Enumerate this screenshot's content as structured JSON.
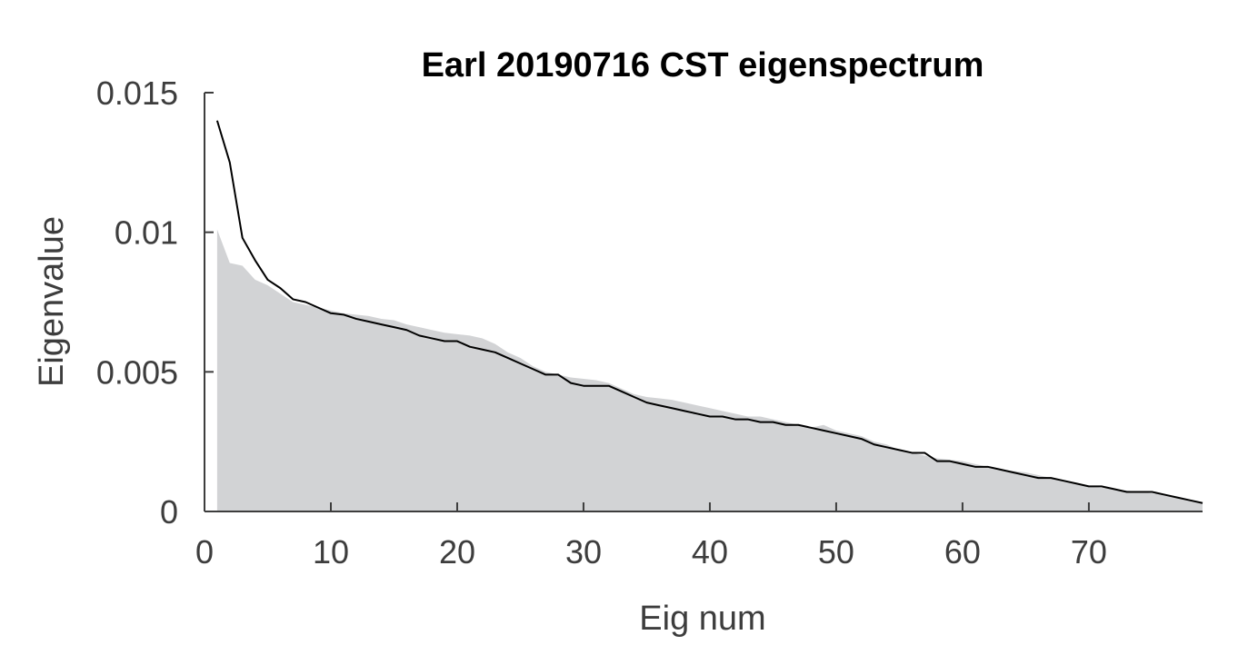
{
  "chart_data": {
    "type": "area",
    "title": "Earl 20190716 CST eigenspectrum",
    "xlabel": "Eig num",
    "ylabel": "Eigenvalue",
    "xlim": [
      0,
      79
    ],
    "ylim": [
      0,
      0.015
    ],
    "x_ticks": [
      0,
      10,
      20,
      30,
      40,
      50,
      60,
      70
    ],
    "x_tick_labels": [
      "0",
      "10",
      "20",
      "30",
      "40",
      "50",
      "60",
      "70"
    ],
    "y_ticks": [
      0,
      0.005,
      0.01,
      0.015
    ],
    "y_tick_labels": [
      "0",
      "0.005",
      "0.01",
      "0.015"
    ],
    "grid": false,
    "legend": "none",
    "colors": {
      "area": "#d2d3d5",
      "line": "#000000",
      "axis": "#3d3d3d"
    },
    "series": [
      {
        "kind": "area",
        "x": [
          1,
          2,
          3,
          4,
          5,
          6,
          7,
          8,
          9,
          10,
          11,
          12,
          13,
          14,
          15,
          16,
          17,
          18,
          19,
          20,
          21,
          22,
          23,
          24,
          25,
          26,
          27,
          28,
          29,
          30,
          31,
          32,
          33,
          34,
          35,
          36,
          37,
          38,
          39,
          40,
          41,
          42,
          43,
          44,
          45,
          46,
          47,
          48,
          49,
          50,
          51,
          52,
          53,
          54,
          55,
          56,
          57,
          58,
          59,
          60,
          61,
          62,
          63,
          64,
          65,
          66,
          67,
          68,
          69,
          70,
          71,
          72,
          73,
          74,
          75,
          76,
          77,
          78,
          79
        ],
        "values": [
          0.0101,
          0.0089,
          0.0088,
          0.0083,
          0.0081,
          0.0078,
          0.0075,
          0.0074,
          0.0073,
          0.0072,
          0.0071,
          0.00705,
          0.007,
          0.0069,
          0.00685,
          0.0067,
          0.0066,
          0.0065,
          0.0064,
          0.00635,
          0.0063,
          0.0062,
          0.006,
          0.0057,
          0.0055,
          0.0052,
          0.005,
          0.0049,
          0.0048,
          0.00475,
          0.0047,
          0.0046,
          0.0044,
          0.0042,
          0.0041,
          0.00405,
          0.004,
          0.0039,
          0.0038,
          0.0037,
          0.0036,
          0.0035,
          0.0034,
          0.0034,
          0.0033,
          0.0032,
          0.0031,
          0.003,
          0.0031,
          0.0029,
          0.0028,
          0.0027,
          0.0025,
          0.0024,
          0.0022,
          0.0021,
          0.002,
          0.0019,
          0.00185,
          0.0018,
          0.0017,
          0.0016,
          0.0015,
          0.00145,
          0.0014,
          0.0013,
          0.0012,
          0.0011,
          0.001,
          0.0009,
          0.00085,
          0.0008,
          0.00075,
          0.0007,
          0.00065,
          0.0006,
          0.0005,
          0.0004,
          0.0003
        ]
      },
      {
        "kind": "line",
        "x": [
          1,
          2,
          3,
          4,
          5,
          6,
          7,
          8,
          9,
          10,
          11,
          12,
          13,
          14,
          15,
          16,
          17,
          18,
          19,
          20,
          21,
          22,
          23,
          24,
          25,
          26,
          27,
          28,
          29,
          30,
          31,
          32,
          33,
          34,
          35,
          36,
          37,
          38,
          39,
          40,
          41,
          42,
          43,
          44,
          45,
          46,
          47,
          48,
          49,
          50,
          51,
          52,
          53,
          54,
          55,
          56,
          57,
          58,
          59,
          60,
          61,
          62,
          63,
          64,
          65,
          66,
          67,
          68,
          69,
          70,
          71,
          72,
          73,
          74,
          75,
          76,
          77,
          78,
          79
        ],
        "values": [
          0.014,
          0.0125,
          0.0098,
          0.009,
          0.0083,
          0.008,
          0.0076,
          0.0075,
          0.0073,
          0.0071,
          0.00705,
          0.0069,
          0.0068,
          0.0067,
          0.0066,
          0.0065,
          0.0063,
          0.0062,
          0.0061,
          0.0061,
          0.0059,
          0.0058,
          0.0057,
          0.0055,
          0.0053,
          0.0051,
          0.0049,
          0.0049,
          0.0046,
          0.0045,
          0.0045,
          0.0045,
          0.0043,
          0.0041,
          0.0039,
          0.0038,
          0.0037,
          0.0036,
          0.0035,
          0.0034,
          0.0034,
          0.0033,
          0.0033,
          0.0032,
          0.0032,
          0.0031,
          0.0031,
          0.003,
          0.0029,
          0.0028,
          0.0027,
          0.0026,
          0.0024,
          0.0023,
          0.0022,
          0.0021,
          0.0021,
          0.0018,
          0.0018,
          0.0017,
          0.0016,
          0.0016,
          0.0015,
          0.0014,
          0.0013,
          0.0012,
          0.0012,
          0.0011,
          0.001,
          0.0009,
          0.0009,
          0.0008,
          0.0007,
          0.0007,
          0.0007,
          0.0006,
          0.0005,
          0.0004,
          0.0003
        ]
      }
    ]
  }
}
